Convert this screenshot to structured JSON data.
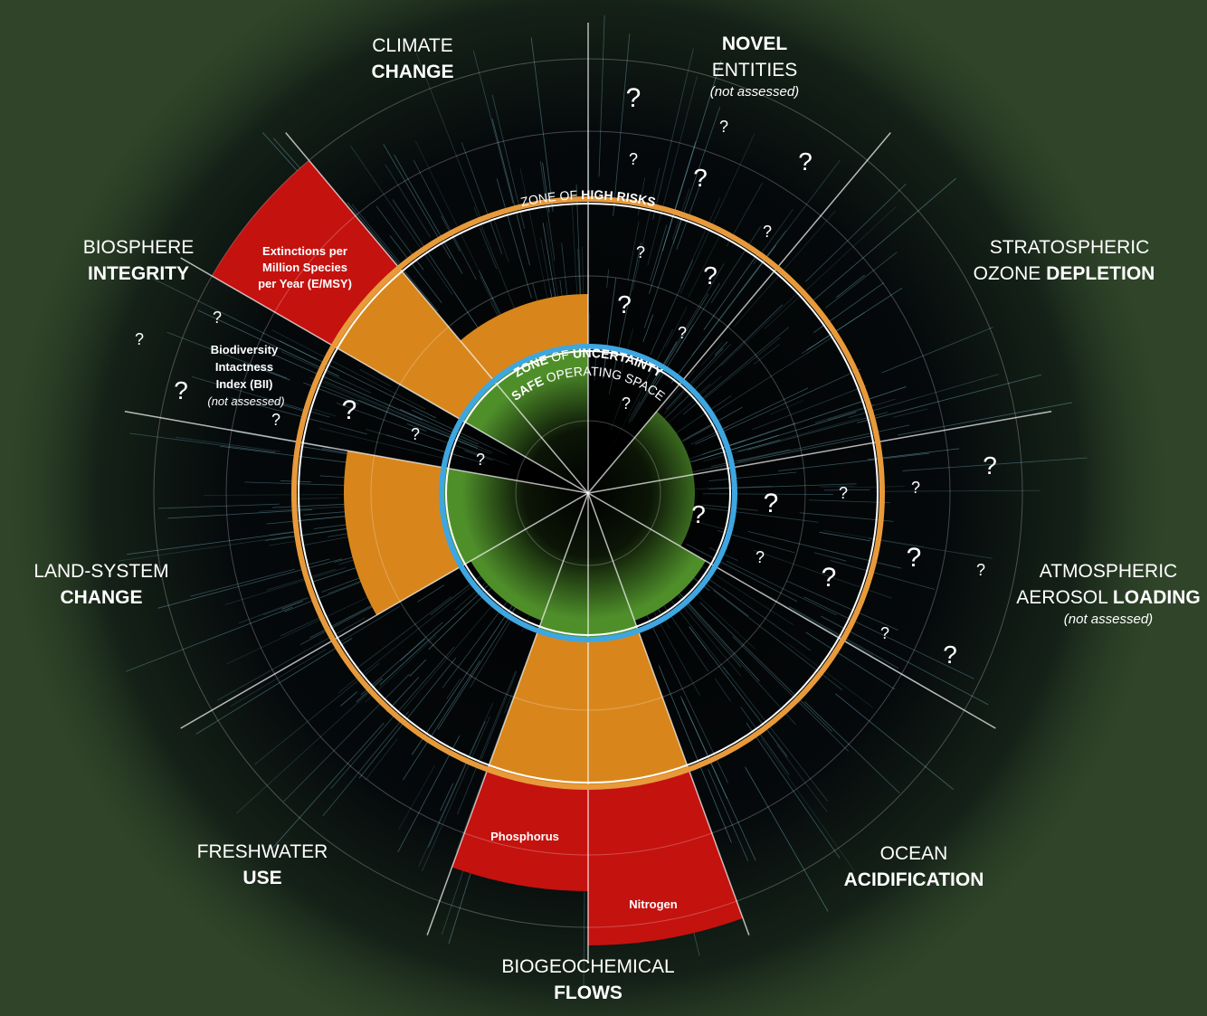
{
  "labels": {
    "climate": {
      "line1": "CLIMATE",
      "line2": "CHANGE"
    },
    "novel": {
      "line1": "NOVEL",
      "line2": "ENTITIES",
      "note": "(not assessed)"
    },
    "ozone": {
      "line1": "STRATOSPHERIC",
      "line2a": "OZONE ",
      "line2b": "DEPLETION"
    },
    "aerosol": {
      "line1": "ATMOSPHERIC",
      "line2a": "AEROSOL ",
      "line2b": "LOADING",
      "note": "(not assessed)"
    },
    "ocean": {
      "line1": "OCEAN",
      "line2": "ACIDIFICATION"
    },
    "biogeochemical": {
      "line1": "BIOGEOCHEMICAL",
      "line2": "FLOWS"
    },
    "freshwater": {
      "line1": "FRESHWATER",
      "line2": "USE"
    },
    "land": {
      "line1": "LAND-SYSTEM",
      "line2": "CHANGE"
    },
    "biosphere": {
      "line1": "BIOSPHERE",
      "line2": "INTEGRITY"
    }
  },
  "inner_labels": {
    "extinctions": [
      "Extinctions per",
      "Million Species",
      "per Year (E/MSY)"
    ],
    "bii": [
      "Biodiversity",
      "Intactness",
      "Index (BII)",
      "(not assessed)"
    ],
    "phosphorus": "Phosphorus",
    "nitrogen": "Nitrogen"
  },
  "zones": {
    "high_a": "ZONE OF ",
    "high_b": "HIGH RISKS",
    "unc_a": "ZONE",
    "unc_b": " OF ",
    "unc_c": "UNCERTAINTY",
    "safe_a": "SAFE",
    "safe_b": " OPERATING SPACE"
  },
  "question_mark": "?"
}
